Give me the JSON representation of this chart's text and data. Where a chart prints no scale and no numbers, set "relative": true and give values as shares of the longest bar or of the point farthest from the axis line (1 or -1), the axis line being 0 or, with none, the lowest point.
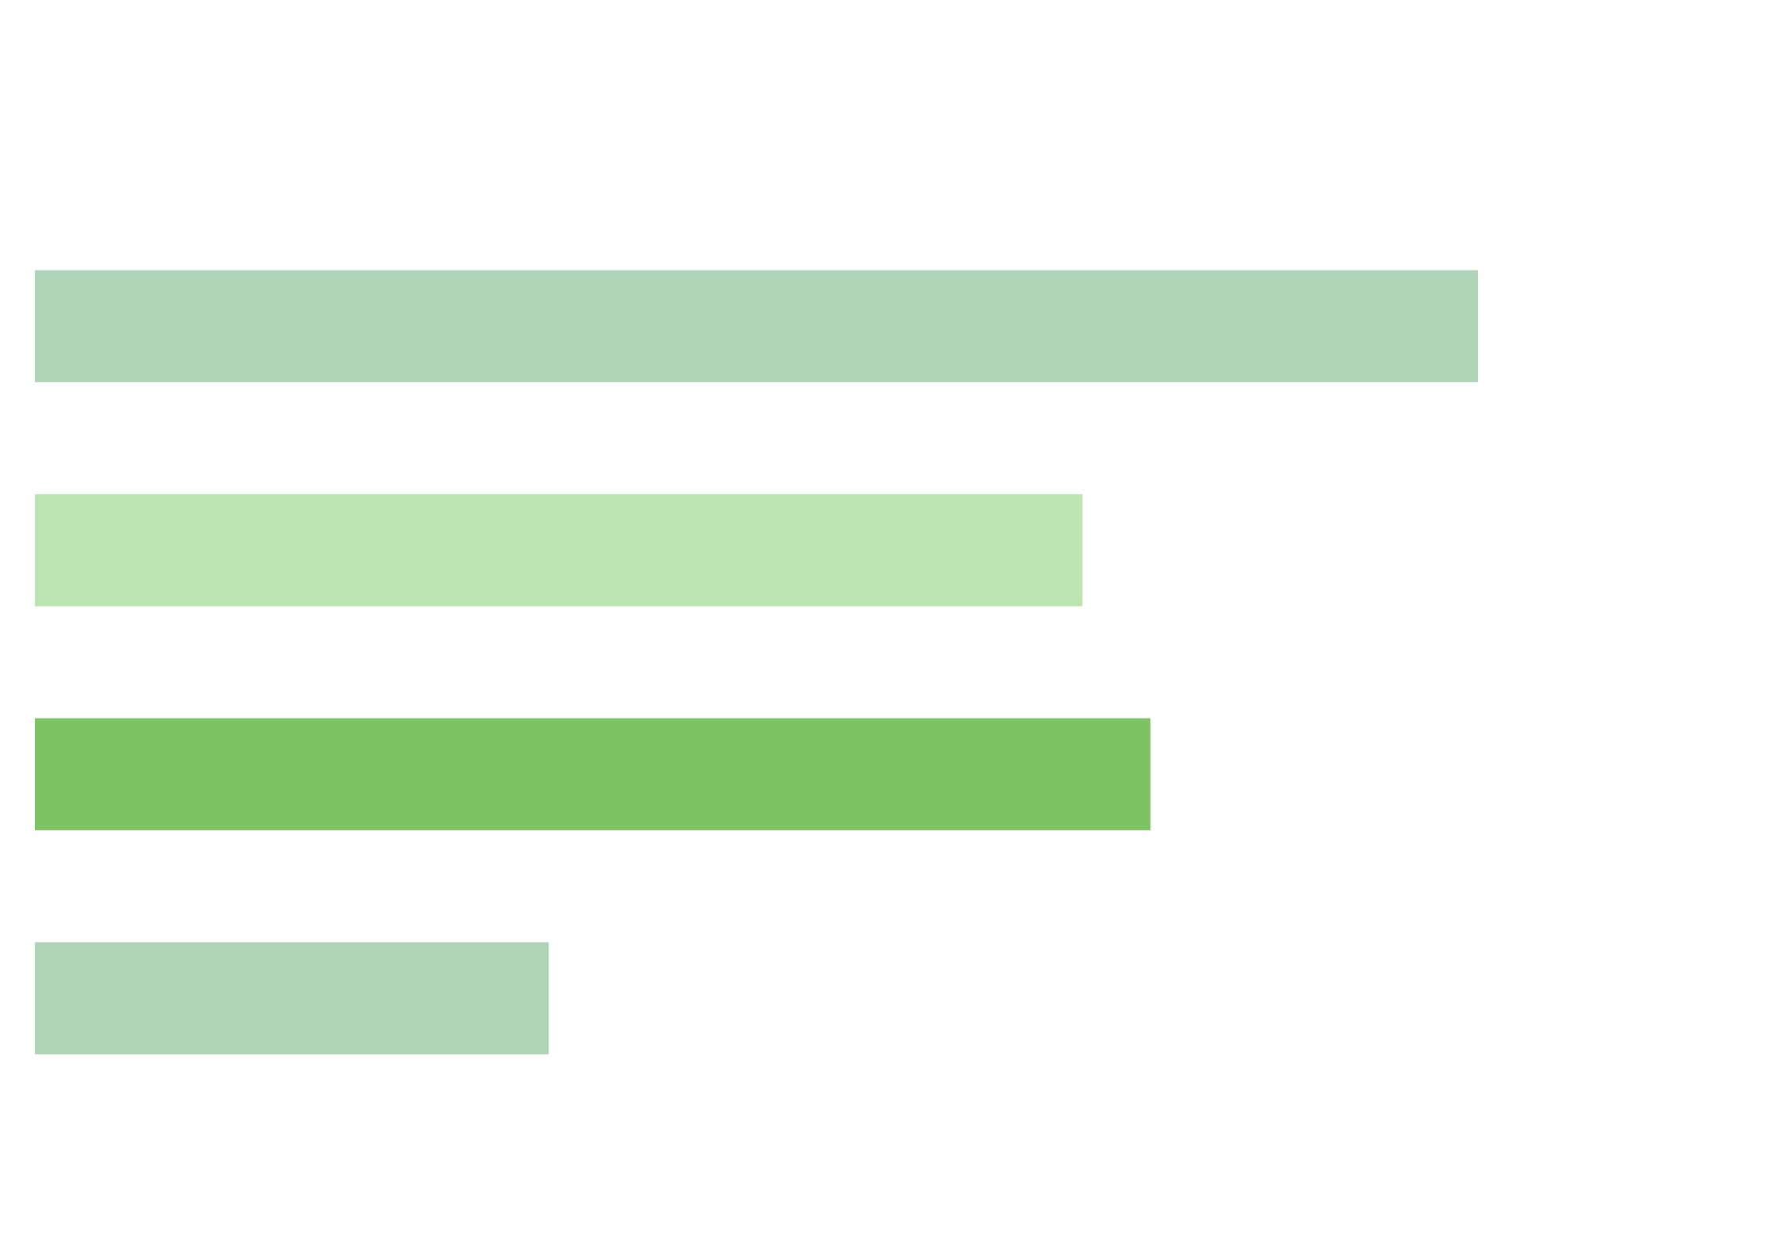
{
  "chart_data": {
    "type": "bar",
    "orientation": "horizontal",
    "relative": true,
    "categories": [
      null,
      null,
      null,
      null
    ],
    "values": [
      1,
      0.726,
      0.773,
      0.356
    ],
    "colors": [
      "#b0d4b8",
      "#bde3b0",
      "#7cc463",
      "#b0d4b8"
    ],
    "legend": false
  }
}
